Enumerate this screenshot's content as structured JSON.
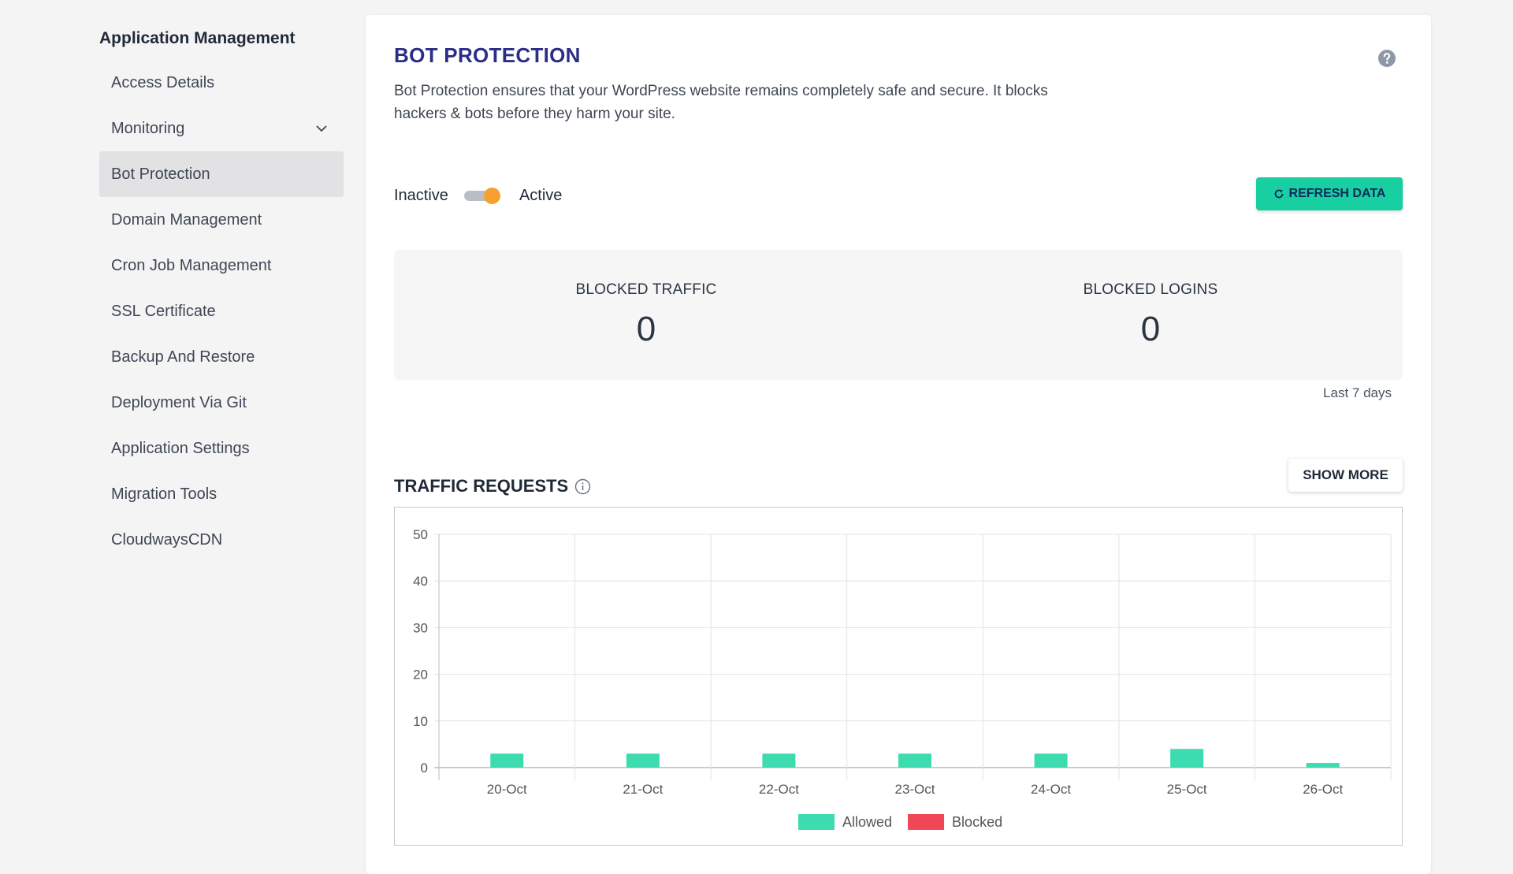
{
  "sidebar": {
    "title": "Application Management",
    "items": [
      {
        "label": "Access Details"
      },
      {
        "label": "Monitoring"
      },
      {
        "label": "Bot Protection"
      },
      {
        "label": "Domain Management"
      },
      {
        "label": "Cron Job Management"
      },
      {
        "label": "SSL Certificate"
      },
      {
        "label": "Backup And Restore"
      },
      {
        "label": "Deployment Via Git"
      },
      {
        "label": "Application Settings"
      },
      {
        "label": "Migration Tools"
      },
      {
        "label": "CloudwaysCDN"
      }
    ]
  },
  "main": {
    "title": "BOT PROTECTION",
    "description": "Bot Protection ensures that your WordPress website remains completely safe and secure. It blocks hackers & bots before they harm your site.",
    "toggle": {
      "off_label": "Inactive",
      "on_label": "Active",
      "state": "on"
    },
    "refresh_label": "REFRESH DATA",
    "stats": {
      "blocked_traffic": {
        "label": "BLOCKED TRAFFIC",
        "value": "0"
      },
      "blocked_logins": {
        "label": "BLOCKED LOGINS",
        "value": "0"
      }
    },
    "period": "Last 7 days",
    "traffic_title": "TRAFFIC REQUESTS",
    "show_more_label": "SHOW MORE"
  },
  "colors": {
    "accent": "#17cfa0",
    "title": "#2a2e86",
    "allowed": "#3ddbb0",
    "blocked": "#f04656",
    "toggle": "#f7a031"
  },
  "chart_data": {
    "type": "bar",
    "categories": [
      "20-Oct",
      "21-Oct",
      "22-Oct",
      "23-Oct",
      "24-Oct",
      "25-Oct",
      "26-Oct"
    ],
    "series": [
      {
        "name": "Allowed",
        "values": [
          3,
          3,
          3,
          3,
          3,
          4,
          1
        ]
      },
      {
        "name": "Blocked",
        "values": [
          0,
          0,
          0,
          0,
          0,
          0,
          0
        ]
      }
    ],
    "yticks": [
      0,
      10,
      20,
      30,
      40,
      50
    ],
    "ylim": [
      0,
      50
    ],
    "grid": true,
    "legend": "bottom"
  }
}
